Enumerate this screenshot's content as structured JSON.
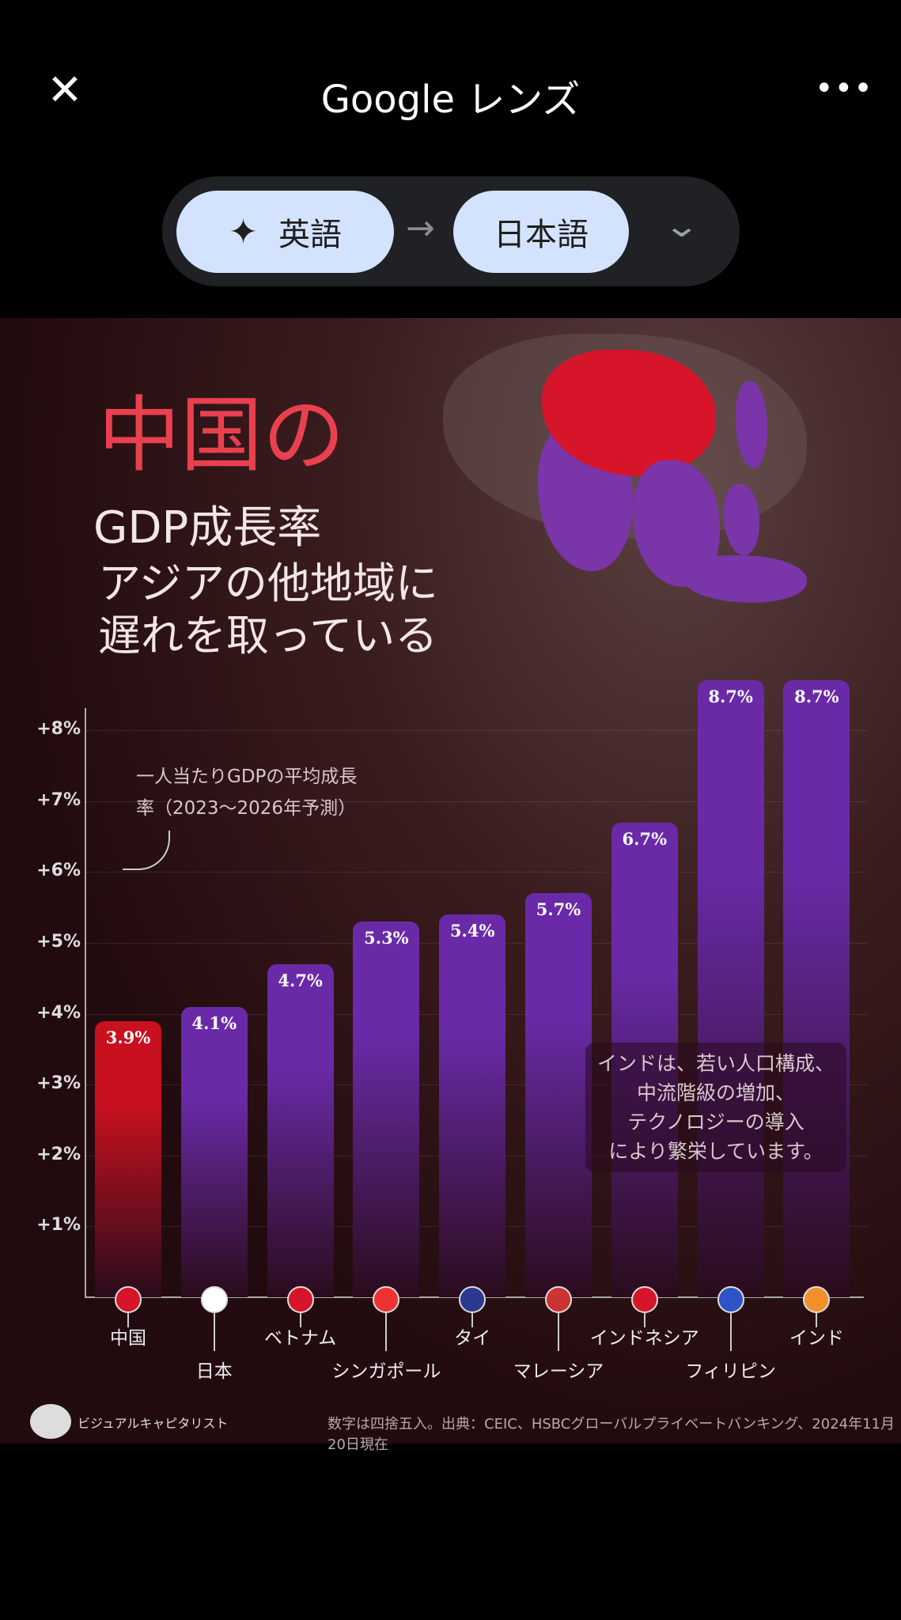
{
  "topbar": {
    "title": "Google レンズ",
    "close_icon": "close-icon",
    "more_icon": "more-icon"
  },
  "translate": {
    "source": "英語",
    "target": "日本語",
    "arrow": "→"
  },
  "infographic": {
    "title_main": "中国の",
    "title_sub": "GDP成長率",
    "subtitle_line1": "アジアの他地域に",
    "subtitle_line2": "遅れを取っている",
    "annotation_line1": "一人当たりGDPの平均成長",
    "annotation_line2": "率（2023〜2026年予測）",
    "india_note": [
      "インドは、若い人口構成、",
      "中流階級の増加、",
      "テクノロジーの導入",
      "により繁栄しています。"
    ],
    "brand": "ビジュアルキャピタリスト",
    "source": "数字は四捨五入。出典：CEIC、HSBCグローバルプライベートバンキング、2024年11月20日現在"
  },
  "chart_data": {
    "type": "bar",
    "categories": [
      "中国",
      "日本",
      "ベトナム",
      "シンガポール",
      "タイ",
      "マレーシア",
      "インドネシア",
      "フィリピン",
      "インド"
    ],
    "values": [
      3.9,
      4.1,
      4.7,
      5.3,
      5.4,
      5.7,
      6.7,
      8.7,
      8.7
    ],
    "value_labels": [
      "3.9%",
      "4.1%",
      "4.7%",
      "5.3%",
      "5.4%",
      "5.7%",
      "6.7%",
      "8.7%",
      "8.7%"
    ],
    "yticks": [
      "+1%",
      "+2%",
      "+3%",
      "+4%",
      "+5%",
      "+6%",
      "+7%",
      "+8%"
    ],
    "ylim": [
      0,
      8.7
    ],
    "colors": {
      "highlight": "#c8101e",
      "default": "#6a2aa8"
    }
  }
}
